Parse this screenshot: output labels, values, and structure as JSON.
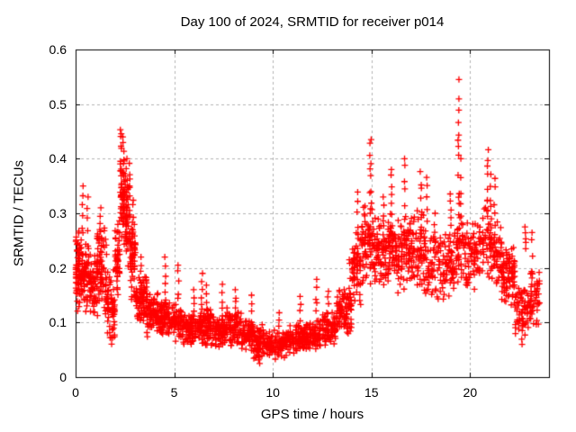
{
  "chart_data": {
    "type": "scatter",
    "title": "Day 100 of 2024, SRMTID for receiver p014",
    "xlabel": "GPS time / hours",
    "ylabel": "SRMTID / TECUs",
    "xlim": [
      0,
      24
    ],
    "ylim": [
      0,
      0.6
    ],
    "xtick_values": [
      0,
      5,
      10,
      15,
      20
    ],
    "xtick_labels": [
      "0",
      "5",
      "10",
      "15",
      "20"
    ],
    "ytick_values": [
      0,
      0.1,
      0.2,
      0.3,
      0.4,
      0.5,
      0.6
    ],
    "ytick_labels": [
      "0",
      "0.1",
      "0.2",
      "0.3",
      "0.4",
      "0.5",
      "0.6"
    ],
    "grid": true,
    "grid_color": "#b4b4b4",
    "axis_color": "#000000",
    "background_color": "#ffffff",
    "marker": {
      "symbol": "+",
      "size": 7,
      "color": "#ff0000"
    },
    "seed": 20240100,
    "bands_format": "[x_start_hours, x_end_hours, y_min_TECUs, y_max_TECUs, n_points]",
    "bands": [
      [
        0.0,
        0.3,
        0.11,
        0.28,
        55
      ],
      [
        0.3,
        0.7,
        0.1,
        0.26,
        60
      ],
      [
        0.7,
        1.1,
        0.1,
        0.24,
        55
      ],
      [
        1.1,
        1.6,
        0.1,
        0.3,
        70
      ],
      [
        1.6,
        2.0,
        0.05,
        0.21,
        55
      ],
      [
        2.0,
        2.25,
        0.13,
        0.31,
        45
      ],
      [
        2.25,
        2.5,
        0.2,
        0.44,
        50
      ],
      [
        2.5,
        2.75,
        0.17,
        0.4,
        45
      ],
      [
        2.75,
        3.05,
        0.12,
        0.32,
        45
      ],
      [
        3.05,
        3.6,
        0.09,
        0.2,
        70
      ],
      [
        3.6,
        4.2,
        0.07,
        0.16,
        75
      ],
      [
        4.2,
        4.75,
        0.06,
        0.15,
        70
      ],
      [
        4.75,
        5.4,
        0.06,
        0.14,
        75
      ],
      [
        5.4,
        6.2,
        0.055,
        0.125,
        85
      ],
      [
        6.2,
        6.85,
        0.05,
        0.13,
        75
      ],
      [
        6.85,
        7.6,
        0.05,
        0.12,
        80
      ],
      [
        7.6,
        8.4,
        0.05,
        0.13,
        85
      ],
      [
        8.4,
        9.0,
        0.04,
        0.11,
        65
      ],
      [
        9.0,
        9.65,
        0.028,
        0.1,
        70
      ],
      [
        9.65,
        10.7,
        0.03,
        0.09,
        110
      ],
      [
        10.7,
        11.6,
        0.04,
        0.1,
        95
      ],
      [
        11.6,
        12.4,
        0.045,
        0.11,
        85
      ],
      [
        12.4,
        13.2,
        0.05,
        0.125,
        85
      ],
      [
        13.2,
        14.0,
        0.07,
        0.17,
        80
      ],
      [
        14.0,
        14.5,
        0.12,
        0.28,
        60
      ],
      [
        14.5,
        15.1,
        0.16,
        0.33,
        65
      ],
      [
        15.1,
        15.8,
        0.15,
        0.3,
        70
      ],
      [
        15.8,
        16.25,
        0.15,
        0.32,
        50
      ],
      [
        16.25,
        17.0,
        0.14,
        0.3,
        70
      ],
      [
        17.0,
        17.7,
        0.15,
        0.31,
        65
      ],
      [
        17.7,
        18.6,
        0.12,
        0.28,
        80
      ],
      [
        18.6,
        19.2,
        0.13,
        0.27,
        60
      ],
      [
        19.2,
        19.65,
        0.16,
        0.33,
        50
      ],
      [
        19.65,
        20.4,
        0.14,
        0.3,
        70
      ],
      [
        20.4,
        21.1,
        0.16,
        0.33,
        65
      ],
      [
        21.1,
        21.6,
        0.14,
        0.3,
        55
      ],
      [
        21.6,
        22.3,
        0.12,
        0.25,
        70
      ],
      [
        22.3,
        23.0,
        0.07,
        0.18,
        60
      ],
      [
        23.0,
        23.55,
        0.08,
        0.2,
        55
      ]
    ],
    "spikes_format": "[x_hours, y_min_TECUs, y_max_TECUs, n_points]",
    "spikes": [
      [
        0.35,
        0.26,
        0.35,
        6
      ],
      [
        0.6,
        0.24,
        0.33,
        5
      ],
      [
        1.25,
        0.27,
        0.31,
        4
      ],
      [
        2.3,
        0.3,
        0.465,
        14
      ],
      [
        2.42,
        0.28,
        0.44,
        10
      ],
      [
        2.6,
        0.25,
        0.4,
        8
      ],
      [
        2.9,
        0.22,
        0.33,
        6
      ],
      [
        3.3,
        0.16,
        0.22,
        5
      ],
      [
        4.55,
        0.13,
        0.22,
        7
      ],
      [
        5.2,
        0.12,
        0.21,
        6
      ],
      [
        6.0,
        0.11,
        0.16,
        5
      ],
      [
        6.4,
        0.12,
        0.19,
        6
      ],
      [
        6.65,
        0.11,
        0.17,
        5
      ],
      [
        7.45,
        0.1,
        0.17,
        6
      ],
      [
        8.1,
        0.1,
        0.16,
        6
      ],
      [
        8.9,
        0.09,
        0.15,
        5
      ],
      [
        9.3,
        0.025,
        0.05,
        5
      ],
      [
        10.3,
        0.08,
        0.12,
        4
      ],
      [
        11.4,
        0.09,
        0.15,
        5
      ],
      [
        12.2,
        0.1,
        0.18,
        6
      ],
      [
        12.8,
        0.1,
        0.16,
        5
      ],
      [
        13.9,
        0.13,
        0.22,
        6
      ],
      [
        14.3,
        0.22,
        0.34,
        7
      ],
      [
        14.95,
        0.3,
        0.435,
        10
      ],
      [
        15.6,
        0.25,
        0.33,
        6
      ],
      [
        16.0,
        0.26,
        0.38,
        8
      ],
      [
        16.7,
        0.28,
        0.4,
        7
      ],
      [
        17.5,
        0.26,
        0.38,
        7
      ],
      [
        17.8,
        0.28,
        0.37,
        5
      ],
      [
        18.2,
        0.22,
        0.3,
        5
      ],
      [
        19.0,
        0.26,
        0.34,
        6
      ],
      [
        19.42,
        0.3,
        0.545,
        12
      ],
      [
        19.55,
        0.28,
        0.4,
        5
      ],
      [
        20.9,
        0.28,
        0.42,
        9
      ],
      [
        21.05,
        0.26,
        0.38,
        6
      ],
      [
        21.25,
        0.25,
        0.37,
        6
      ],
      [
        22.8,
        0.235,
        0.275,
        5
      ],
      [
        22.65,
        0.06,
        0.12,
        6
      ],
      [
        23.15,
        0.17,
        0.27,
        5
      ]
    ]
  }
}
